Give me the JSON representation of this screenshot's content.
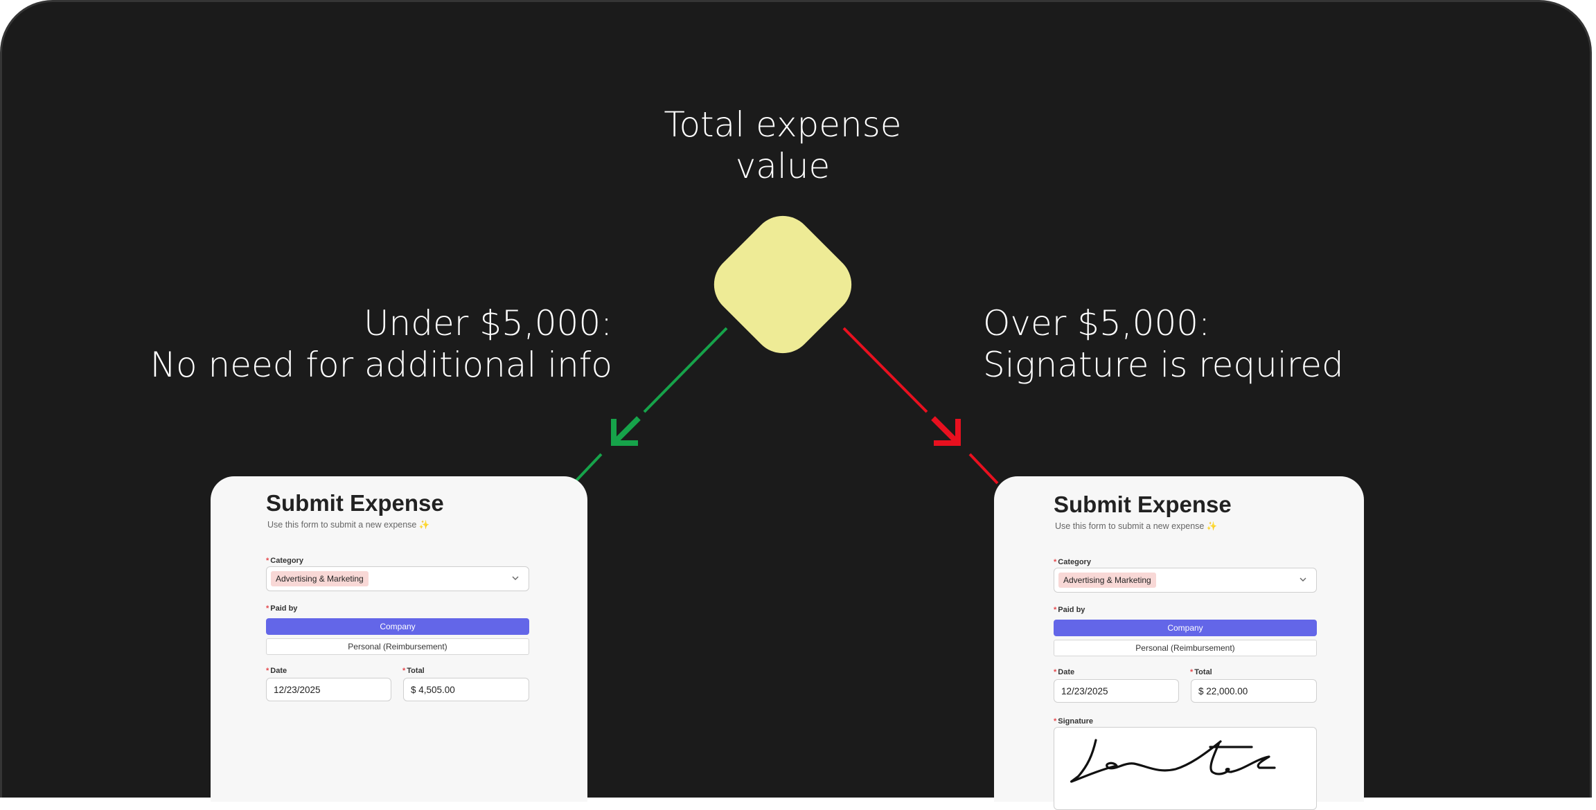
{
  "decision": {
    "question_lines": [
      "Total expense value"
    ],
    "question_line1": "Total expense",
    "question_line2": "value",
    "diamond_color": "#eeeb96"
  },
  "branches": {
    "left": {
      "line1": "Under $5,000:",
      "line2": "No need for additional info",
      "arrow_color": "#16a34a"
    },
    "right": {
      "line1": "Over $5,000:",
      "line2": "Signature is required",
      "arrow_color": "#e8101f"
    }
  },
  "forms": {
    "left": {
      "title": "Submit Expense",
      "subtitle": "Use this form to submit a new expense ✨",
      "required_mark": "*",
      "category_label": "Category",
      "category_value": "Advertising & Marketing",
      "paid_by_label": "Paid by",
      "paid_by_options": [
        "Company",
        "Personal (Reimbursement)"
      ],
      "paid_by_selected": "Company",
      "date_label": "Date",
      "date_value": "12/23/2025",
      "total_label": "Total",
      "total_value": "$ 4,505.00"
    },
    "right": {
      "title": "Submit Expense",
      "subtitle": "Use this form to submit a new expense ✨",
      "required_mark": "*",
      "category_label": "Category",
      "category_value": "Advertising & Marketing",
      "paid_by_label": "Paid by",
      "paid_by_options": [
        "Company",
        "Personal (Reimbursement)"
      ],
      "paid_by_selected": "Company",
      "date_label": "Date",
      "date_value": "12/23/2025",
      "total_label": "Total",
      "total_value": "$ 22,000.00",
      "signature_label": "Signature"
    }
  },
  "colors": {
    "background": "#1b1b1b",
    "primary_button": "#6366e8",
    "tag": "#f8d8d6",
    "required": "#e5484d"
  }
}
